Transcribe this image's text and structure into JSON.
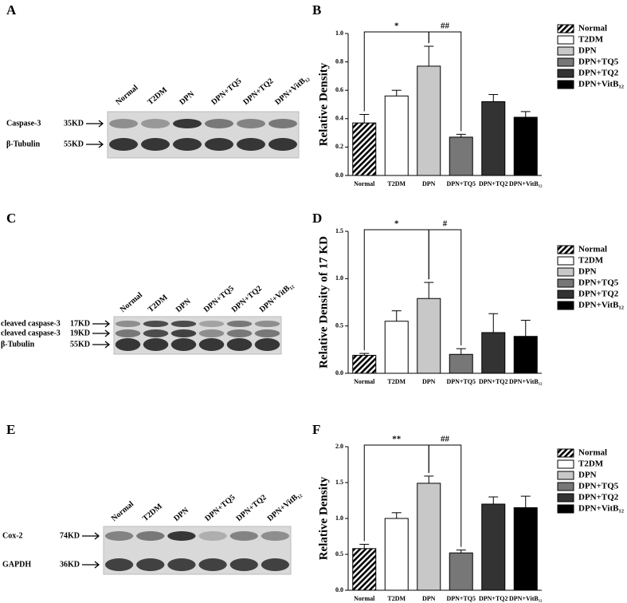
{
  "chart_data": [
    {
      "type": "bar",
      "panel_label": "B",
      "y_label": "Relative Density",
      "categories": [
        "Normal",
        "T2DM",
        "DPN",
        "DPN+TQ5",
        "DPN+TQ2",
        "DPN+VitB₁₂"
      ],
      "values": [
        0.37,
        0.56,
        0.77,
        0.27,
        0.52,
        0.41
      ],
      "errors": [
        0.06,
        0.04,
        0.14,
        0.02,
        0.05,
        0.04
      ],
      "colors": [
        "hatched",
        "#ffffff",
        "#c8c8c8",
        "#777777",
        "#333333",
        "#000000"
      ],
      "ylim": [
        0,
        1.0
      ],
      "yticks": [
        {
          "value": 0,
          "label": "0.0"
        },
        0.2,
        0.4,
        0.6,
        0.8,
        {
          "value": 1.0,
          "label": "1.0"
        }
      ],
      "annotations": [
        "*",
        "##"
      ],
      "legend": true
    },
    {
      "type": "bar",
      "panel_label": "D",
      "y_label": "Relative Density of 17 KD",
      "categories": [
        "Normal",
        "T2DM",
        "DPN",
        "DPN+TQ5",
        "DPN+TQ2",
        "DPN+VitB₁₂"
      ],
      "values": [
        0.19,
        0.55,
        0.79,
        0.2,
        0.43,
        0.39
      ],
      "errors": [
        0.02,
        0.11,
        0.17,
        0.06,
        0.2,
        0.17
      ],
      "colors": [
        "hatched",
        "#ffffff",
        "#c8c8c8",
        "#777777",
        "#333333",
        "#000000"
      ],
      "ylim": [
        0,
        1.5
      ],
      "yticks": [
        {
          "value": 0,
          "label": "0.0"
        },
        0.5,
        {
          "value": 1.0,
          "label": "1.0"
        },
        1.5
      ],
      "annotations": [
        "*",
        "#"
      ],
      "legend": true
    },
    {
      "type": "bar",
      "panel_label": "F",
      "y_label": "Relative Density",
      "categories": [
        "Normal",
        "T2DM",
        "DPN",
        "DPN+TQ5",
        "DPN+TQ2",
        "DPN+VitB₁₂"
      ],
      "values": [
        0.58,
        1.0,
        1.49,
        0.52,
        1.2,
        1.15
      ],
      "errors": [
        0.06,
        0.08,
        0.1,
        0.04,
        0.1,
        0.16
      ],
      "colors": [
        "hatched",
        "#ffffff",
        "#c8c8c8",
        "#777777",
        "#333333",
        "#000000"
      ],
      "ylim": [
        0,
        2.0
      ],
      "yticks": [
        {
          "value": 0,
          "label": "0.0"
        },
        0.5,
        {
          "value": 1.0,
          "label": "1.0"
        },
        1.5,
        {
          "value": 2.0,
          "label": "2.0"
        }
      ],
      "annotations": [
        "**",
        "##"
      ],
      "legend": true
    }
  ],
  "blots": [
    {
      "panel_label": "A",
      "lanes": [
        "Normal",
        "T2DM",
        "DPN",
        "DPN+TQ5",
        "DPN+TQ2",
        "DPN+VitB₁₂"
      ],
      "rows": [
        {
          "protein": "Caspase-3",
          "size": "35KD"
        },
        {
          "protein": "β-Tubulin",
          "size": "55KD"
        }
      ]
    },
    {
      "panel_label": "C",
      "lanes": [
        "Normal",
        "T2DM",
        "DPN",
        "DPN+TQ5",
        "DPN+TQ2",
        "DPN+VitB₁₂"
      ],
      "rows": [
        {
          "protein": "cleaved caspase-3",
          "size": "17KD"
        },
        {
          "protein": "cleaved caspase-3",
          "size": "19KD"
        },
        {
          "protein": "β-Tubulin",
          "size": "55KD"
        }
      ]
    },
    {
      "panel_label": "E",
      "lanes": [
        "Normal",
        "T2DM",
        "DPN",
        "DPN+TQ5",
        "DPN+TQ2",
        "DPN+VitB₁₂"
      ],
      "rows": [
        {
          "protein": "Cox-2",
          "size": "74KD"
        },
        {
          "protein": "GAPDH",
          "size": "36KD"
        }
      ]
    }
  ]
}
